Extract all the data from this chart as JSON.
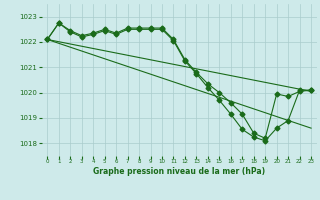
{
  "title": "Graphe pression niveau de la mer (hPa)",
  "bg_color": "#ceeaea",
  "grid_color": "#aacccc",
  "line_color": "#1a6b1a",
  "xlim": [
    -0.5,
    23.5
  ],
  "ylim": [
    1017.5,
    1023.5
  ],
  "yticks": [
    1018,
    1019,
    1020,
    1021,
    1022,
    1023
  ],
  "xticks": [
    0,
    1,
    2,
    3,
    4,
    5,
    6,
    7,
    8,
    9,
    10,
    11,
    12,
    13,
    14,
    15,
    16,
    17,
    18,
    19,
    20,
    21,
    22,
    23
  ],
  "series": [
    {
      "x": [
        0,
        1,
        2,
        3,
        4,
        5,
        6,
        7,
        8,
        9,
        10,
        11,
        12,
        13,
        14,
        15,
        16,
        17,
        18,
        19,
        20,
        21,
        22,
        23
      ],
      "y": [
        1022.1,
        1022.75,
        1022.45,
        1022.25,
        1022.35,
        1022.5,
        1022.35,
        1022.55,
        1022.55,
        1022.55,
        1022.55,
        1022.1,
        1021.3,
        1020.8,
        1020.35,
        1020.0,
        1019.6,
        1019.15,
        1018.4,
        1018.2,
        1019.95,
        1019.85,
        1020.05,
        1020.1
      ],
      "marker": "D",
      "markersize": 2.5
    },
    {
      "x": [
        0,
        1,
        2,
        3,
        4,
        5,
        6,
        7,
        8,
        9,
        10,
        11,
        12,
        13,
        14,
        15,
        16,
        17,
        18,
        19,
        20,
        21,
        22,
        23
      ],
      "y": [
        1022.1,
        1022.75,
        1022.4,
        1022.2,
        1022.3,
        1022.45,
        1022.3,
        1022.5,
        1022.5,
        1022.5,
        1022.5,
        1022.05,
        1021.25,
        1020.75,
        1020.2,
        1019.7,
        1019.15,
        1018.55,
        1018.25,
        1018.1,
        1018.6,
        1018.9,
        1020.1,
        1020.1
      ],
      "marker": "D",
      "markersize": 2.5
    },
    {
      "x": [
        0,
        23
      ],
      "y": [
        1022.1,
        1020.05
      ],
      "marker": null,
      "markersize": 0
    },
    {
      "x": [
        0,
        23
      ],
      "y": [
        1022.1,
        1018.6
      ],
      "marker": null,
      "markersize": 0
    }
  ]
}
